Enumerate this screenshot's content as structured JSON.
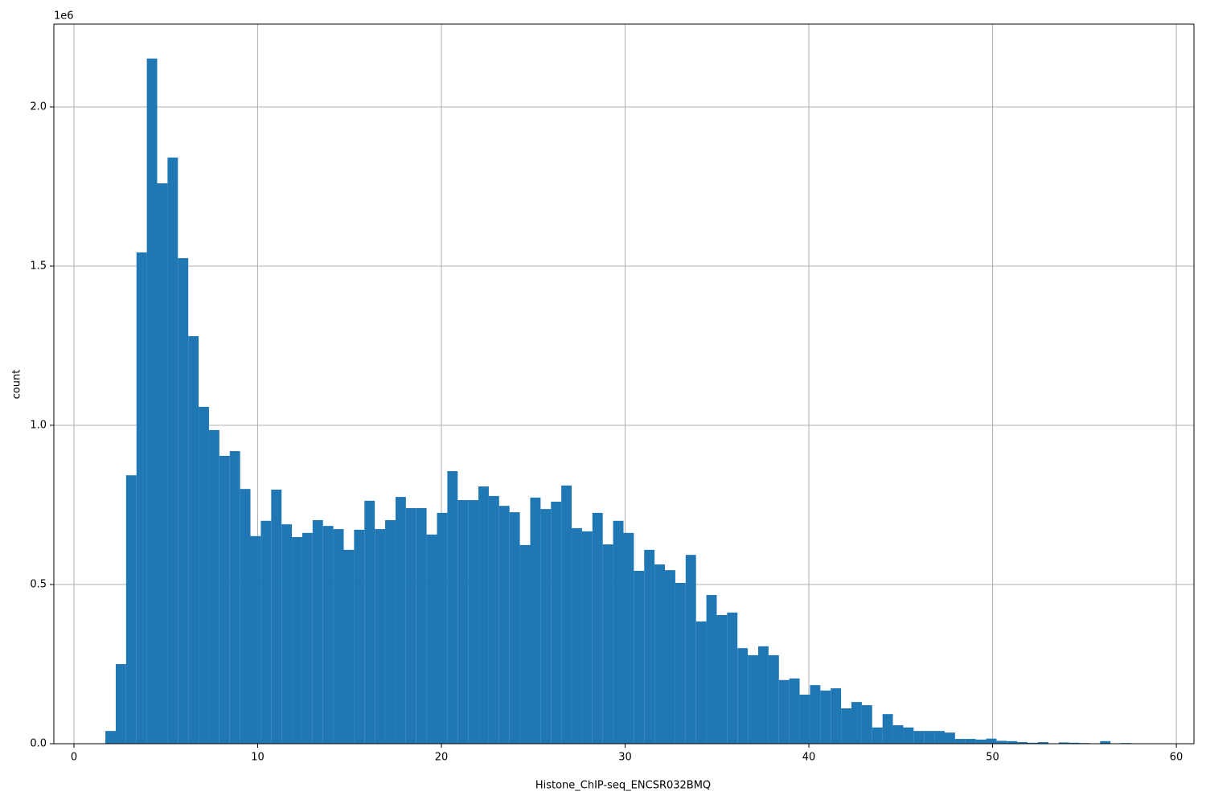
{
  "chart_data": {
    "type": "histogram",
    "xlabel": "Histone_ChIP-seq_ENCSR032BMQ",
    "ylabel": "count",
    "y_offset_label": "1e6",
    "color": "#1f77b4",
    "grid": true,
    "bins": [
      1.71,
      2.274,
      2.838,
      3.402,
      3.966,
      4.53,
      5.094,
      5.658,
      6.222,
      6.786,
      7.35,
      7.914,
      8.478,
      9.042,
      9.606,
      10.17,
      10.734,
      11.298,
      11.862,
      12.426,
      12.99,
      13.554,
      14.118,
      14.682,
      15.246,
      15.81,
      16.374,
      16.938,
      17.502,
      18.066,
      18.63,
      19.194,
      19.758,
      20.322,
      20.886,
      21.45,
      22.014,
      22.578,
      23.142,
      23.706,
      24.27,
      24.834,
      25.398,
      25.962,
      26.526,
      27.09,
      27.654,
      28.218,
      28.782,
      29.346,
      29.91,
      30.474,
      31.038,
      31.602,
      32.166,
      32.73,
      33.294,
      33.858,
      34.422,
      34.986,
      35.55,
      36.114,
      36.678,
      37.242,
      37.806,
      38.37,
      38.934,
      39.498,
      40.062,
      40.626,
      41.19,
      41.754,
      42.318,
      42.882,
      43.446,
      44.01,
      44.574,
      45.138,
      45.702,
      46.266,
      46.83,
      47.394,
      47.958,
      48.522,
      49.086,
      49.65,
      50.214,
      50.778,
      51.342,
      51.906,
      52.47,
      53.034,
      53.598,
      54.162,
      54.726,
      55.29,
      55.854,
      56.418,
      56.982,
      57.546,
      58.11
    ],
    "values": [
      40000,
      250000,
      843000,
      1543000,
      2152000,
      1760000,
      1841000,
      1525000,
      1280000,
      1058000,
      985000,
      904000,
      919000,
      800000,
      652000,
      700000,
      798000,
      689000,
      649000,
      662000,
      702000,
      684000,
      674000,
      609000,
      672000,
      763000,
      674000,
      702000,
      775000,
      740000,
      740000,
      657000,
      725000,
      856000,
      765000,
      765000,
      808000,
      778000,
      747000,
      727000,
      624000,
      773000,
      737000,
      760000,
      811000,
      677000,
      667000,
      725000,
      626000,
      700000,
      662000,
      543000,
      609000,
      563000,
      545000,
      505000,
      593000,
      384000,
      467000,
      404000,
      412000,
      300000,
      278000,
      306000,
      278000,
      200000,
      205000,
      154000,
      184000,
      167000,
      174000,
      111000,
      131000,
      121000,
      51000,
      93000,
      58000,
      51000,
      40000,
      40000,
      40000,
      35000,
      15000,
      15000,
      13000,
      16000,
      9000,
      8000,
      5000,
      3000,
      5000,
      1000,
      4000,
      3000,
      2000,
      1000,
      8000,
      500,
      2000,
      500
    ],
    "xlim": [
      -1.094,
      60.96
    ],
    "xticks": [
      0,
      10,
      20,
      30,
      40,
      50,
      60
    ],
    "ylim": [
      0,
      2260000
    ],
    "yticks": [
      {
        "value": 0,
        "label": "0.0"
      },
      {
        "value": 500000,
        "label": "0.5"
      },
      {
        "value": 1000000,
        "label": "1.0"
      },
      {
        "value": 1500000,
        "label": "1.5"
      },
      {
        "value": 2000000,
        "label": "2.0"
      }
    ]
  }
}
